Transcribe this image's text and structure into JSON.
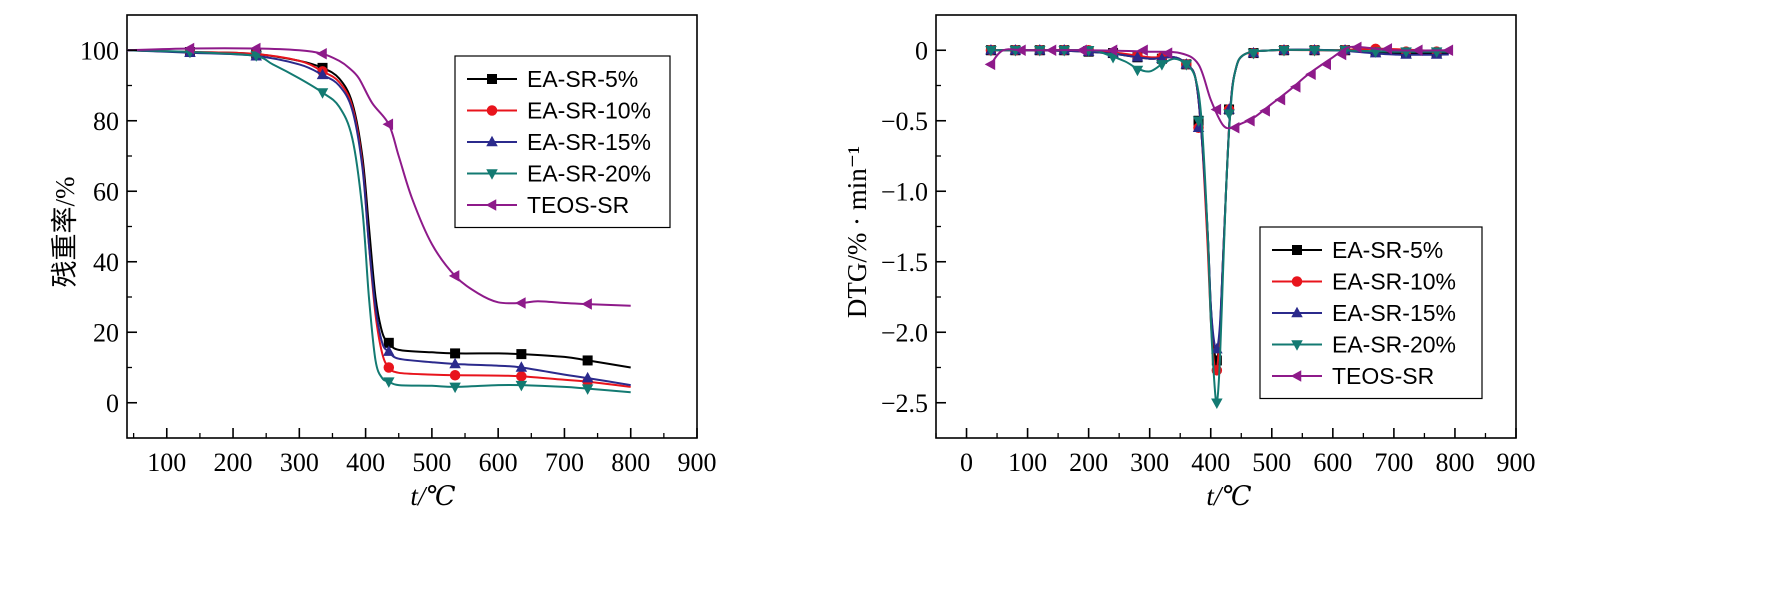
{
  "chart_data": [
    {
      "type": "line",
      "xlabel": "t/℃",
      "ylabel": "残重率/%",
      "xlim": [
        40,
        900
      ],
      "ylim": [
        -10,
        110
      ],
      "xticks": [
        100,
        200,
        300,
        400,
        500,
        600,
        700,
        800,
        900
      ],
      "yticks": [
        0,
        20,
        40,
        60,
        80,
        100
      ],
      "legend_position": "top-right",
      "grid": false,
      "series": [
        {
          "name": "EA-SR-5%",
          "color": "#000000",
          "marker": "square",
          "x": [
            40,
            135,
            230,
            300,
            335,
            360,
            380,
            395,
            405,
            415,
            425,
            435,
            450,
            500,
            535,
            600,
            635,
            700,
            735,
            800
          ],
          "y": [
            100,
            99.5,
            99,
            97,
            95,
            92,
            85,
            70,
            50,
            30,
            20,
            17,
            15,
            14.3,
            14,
            14,
            13.8,
            13,
            12,
            10
          ],
          "marker_x": [
            135,
            235,
            335,
            435,
            535,
            635,
            735
          ],
          "marker_y": [
            99.5,
            99,
            95,
            17,
            14,
            13.8,
            12
          ]
        },
        {
          "name": "EA-SR-10%",
          "color": "#e8141c",
          "marker": "circle",
          "x": [
            40,
            135,
            230,
            300,
            335,
            360,
            380,
            395,
            405,
            415,
            425,
            435,
            450,
            500,
            535,
            600,
            635,
            700,
            735,
            800
          ],
          "y": [
            100,
            99.5,
            99,
            97,
            94,
            91,
            84,
            68,
            45,
            25,
            14,
            10,
            8.5,
            8,
            7.8,
            7.7,
            7.5,
            6.5,
            6,
            4.5
          ],
          "marker_x": [
            135,
            235,
            335,
            435,
            535,
            635,
            735
          ],
          "marker_y": [
            99.5,
            99,
            94,
            10,
            7.8,
            7.5,
            6
          ]
        },
        {
          "name": "EA-SR-15%",
          "color": "#2b2a8c",
          "marker": "triangle-up",
          "x": [
            40,
            135,
            230,
            300,
            335,
            360,
            380,
            395,
            405,
            415,
            425,
            435,
            450,
            500,
            535,
            600,
            635,
            700,
            735,
            800
          ],
          "y": [
            100,
            99.3,
            98.5,
            96,
            93,
            90,
            83,
            67,
            45,
            27,
            17,
            14.5,
            12.5,
            11.5,
            11,
            10.5,
            10,
            8,
            7,
            5
          ],
          "marker_x": [
            135,
            235,
            335,
            435,
            535,
            635,
            735
          ],
          "marker_y": [
            99.3,
            98.3,
            93,
            14.5,
            11,
            10,
            7
          ]
        },
        {
          "name": "EA-SR-20%",
          "color": "#137a72",
          "marker": "triangle-down",
          "x": [
            40,
            135,
            230,
            260,
            300,
            335,
            360,
            380,
            395,
            405,
            415,
            425,
            435,
            450,
            500,
            535,
            600,
            635,
            700,
            735,
            800
          ],
          "y": [
            100,
            99.5,
            98.5,
            96,
            92,
            88,
            84,
            75,
            55,
            30,
            12,
            7,
            6,
            5,
            4.8,
            4.5,
            5,
            5,
            4.5,
            4,
            3
          ],
          "marker_x": [
            135,
            235,
            335,
            435,
            535,
            635,
            735
          ],
          "marker_y": [
            99.5,
            98.5,
            88,
            6,
            4.5,
            5,
            4
          ]
        },
        {
          "name": "TEOS-SR",
          "color": "#8e1a8a",
          "marker": "triangle-left",
          "x": [
            40,
            135,
            235,
            300,
            335,
            360,
            375,
            390,
            410,
            435,
            450,
            470,
            500,
            535,
            570,
            600,
            635,
            660,
            700,
            735,
            800
          ],
          "y": [
            100,
            100.5,
            100.5,
            100,
            99,
            97,
            95,
            92,
            85,
            79,
            70,
            58,
            45,
            36,
            31,
            28.5,
            28.3,
            28.8,
            28.3,
            28,
            27.5
          ],
          "marker_x": [
            135,
            235,
            335,
            435,
            535,
            635,
            735
          ],
          "marker_y": [
            100.5,
            100.5,
            99,
            79,
            36,
            28.3,
            28
          ]
        }
      ]
    },
    {
      "type": "line",
      "xlabel": "t/℃",
      "ylabel": "DTG/% · min⁻¹",
      "xlim": [
        -50,
        900
      ],
      "ylim": [
        -2.75,
        0.25
      ],
      "xticks": [
        0,
        100,
        200,
        300,
        400,
        500,
        600,
        700,
        800,
        900
      ],
      "yticks": [
        0,
        -0.5,
        -1.0,
        -1.5,
        -2.0,
        -2.5
      ],
      "ytick_labels": [
        "0",
        "−0.5",
        "−1.0",
        "−1.5",
        "−2.0",
        "−2.5"
      ],
      "legend_position": "bottom-right",
      "grid": false,
      "series": [
        {
          "name": "EA-SR-5%",
          "color": "#000000",
          "marker": "square",
          "x": [
            40,
            100,
            200,
            250,
            300,
            340,
            360,
            375,
            385,
            395,
            400,
            405,
            410,
            415,
            420,
            425,
            432,
            440,
            455,
            500,
            600,
            700,
            790
          ],
          "y": [
            0,
            0,
            -0.01,
            -0.03,
            -0.06,
            -0.05,
            -0.1,
            -0.2,
            -0.6,
            -1.3,
            -1.8,
            -2.1,
            -2.2,
            -2.0,
            -1.5,
            -1.0,
            -0.42,
            -0.15,
            -0.03,
            0,
            0,
            -0.02,
            -0.02
          ],
          "marker_x": [
            40,
            80,
            120,
            160,
            200,
            240,
            280,
            320,
            360,
            380,
            410,
            430,
            470,
            520,
            570,
            620,
            670,
            720,
            770
          ],
          "marker_y": [
            0,
            0,
            0,
            0,
            -0.01,
            -0.02,
            -0.05,
            -0.06,
            -0.1,
            -0.5,
            -2.2,
            -0.42,
            -0.02,
            0,
            0,
            0,
            -0.01,
            -0.02,
            -0.02
          ]
        },
        {
          "name": "EA-SR-10%",
          "color": "#e8141c",
          "marker": "circle",
          "x": [
            40,
            100,
            200,
            250,
            300,
            340,
            360,
            375,
            385,
            395,
            400,
            405,
            410,
            415,
            420,
            425,
            432,
            440,
            455,
            500,
            600,
            680,
            790
          ],
          "y": [
            0,
            0,
            0,
            -0.02,
            -0.05,
            -0.05,
            -0.1,
            -0.2,
            -0.6,
            -1.4,
            -1.9,
            -2.2,
            -2.27,
            -2.0,
            -1.5,
            -1.0,
            -0.42,
            -0.15,
            -0.03,
            0,
            0,
            0.01,
            -0.01
          ],
          "marker_x": [
            40,
            80,
            120,
            160,
            200,
            240,
            280,
            320,
            360,
            380,
            410,
            430,
            470,
            520,
            570,
            620,
            670,
            720,
            770
          ],
          "marker_y": [
            0,
            0,
            0,
            0,
            0,
            -0.02,
            -0.04,
            -0.05,
            -0.1,
            -0.55,
            -2.27,
            -0.42,
            -0.02,
            0,
            0,
            0,
            0.01,
            -0.01,
            -0.01
          ]
        },
        {
          "name": "EA-SR-15%",
          "color": "#2b2a8c",
          "marker": "triangle-up",
          "x": [
            40,
            100,
            200,
            250,
            300,
            340,
            360,
            375,
            385,
            395,
            400,
            405,
            410,
            415,
            420,
            425,
            432,
            440,
            455,
            500,
            600,
            700,
            790
          ],
          "y": [
            0,
            0,
            -0.01,
            -0.03,
            -0.06,
            -0.05,
            -0.1,
            -0.2,
            -0.6,
            -1.3,
            -1.8,
            -2.05,
            -2.12,
            -1.95,
            -1.5,
            -1.0,
            -0.42,
            -0.15,
            -0.03,
            0,
            0,
            -0.03,
            -0.03
          ],
          "marker_x": [
            40,
            80,
            120,
            160,
            200,
            240,
            280,
            320,
            360,
            380,
            410,
            430,
            470,
            520,
            570,
            620,
            670,
            720,
            770
          ],
          "marker_y": [
            0,
            0,
            0,
            0,
            -0.01,
            -0.02,
            -0.05,
            -0.06,
            -0.1,
            -0.55,
            -2.12,
            -0.42,
            -0.02,
            0,
            0,
            0,
            -0.02,
            -0.03,
            -0.03
          ]
        },
        {
          "name": "EA-SR-20%",
          "color": "#137a72",
          "marker": "triangle-down",
          "x": [
            40,
            100,
            200,
            230,
            260,
            280,
            300,
            320,
            340,
            360,
            375,
            385,
            395,
            400,
            405,
            410,
            415,
            420,
            425,
            432,
            440,
            455,
            500,
            600,
            700,
            790
          ],
          "y": [
            0,
            0,
            0,
            -0.03,
            -0.08,
            -0.13,
            -0.15,
            -0.1,
            -0.06,
            -0.1,
            -0.2,
            -0.5,
            -1.3,
            -1.9,
            -2.3,
            -2.5,
            -2.2,
            -1.6,
            -1.0,
            -0.45,
            -0.15,
            -0.03,
            0,
            0,
            -0.01,
            -0.01
          ],
          "marker_x": [
            40,
            80,
            120,
            160,
            200,
            240,
            280,
            320,
            360,
            380,
            410,
            430,
            470,
            520,
            570,
            620,
            670,
            720,
            770
          ],
          "marker_y": [
            0,
            0,
            0,
            0,
            0,
            -0.05,
            -0.14,
            -0.1,
            -0.1,
            -0.5,
            -2.5,
            -0.45,
            -0.02,
            0,
            0,
            0,
            -0.01,
            -0.01,
            -0.01
          ]
        },
        {
          "name": "TEOS-SR",
          "color": "#8e1a8a",
          "marker": "triangle-left",
          "x": [
            40,
            60,
            100,
            200,
            300,
            350,
            380,
            400,
            420,
            435,
            450,
            470,
            500,
            530,
            560,
            600,
            625,
            650,
            700,
            790
          ],
          "y": [
            -0.1,
            0,
            0,
            0,
            -0.01,
            -0.02,
            -0.1,
            -0.35,
            -0.53,
            -0.55,
            -0.52,
            -0.48,
            -0.38,
            -0.28,
            -0.17,
            -0.05,
            0.02,
            0.02,
            0,
            0
          ],
          "marker_x": [
            40,
            90,
            140,
            190,
            240,
            290,
            330,
            410,
            440,
            465,
            490,
            515,
            540,
            565,
            590,
            615,
            640,
            690,
            740,
            790
          ],
          "marker_y": [
            -0.1,
            0,
            0,
            0,
            0,
            0,
            -0.02,
            -0.42,
            -0.55,
            -0.5,
            -0.43,
            -0.35,
            -0.26,
            -0.17,
            -0.1,
            -0.03,
            0.02,
            0.01,
            0,
            0
          ]
        }
      ]
    }
  ]
}
